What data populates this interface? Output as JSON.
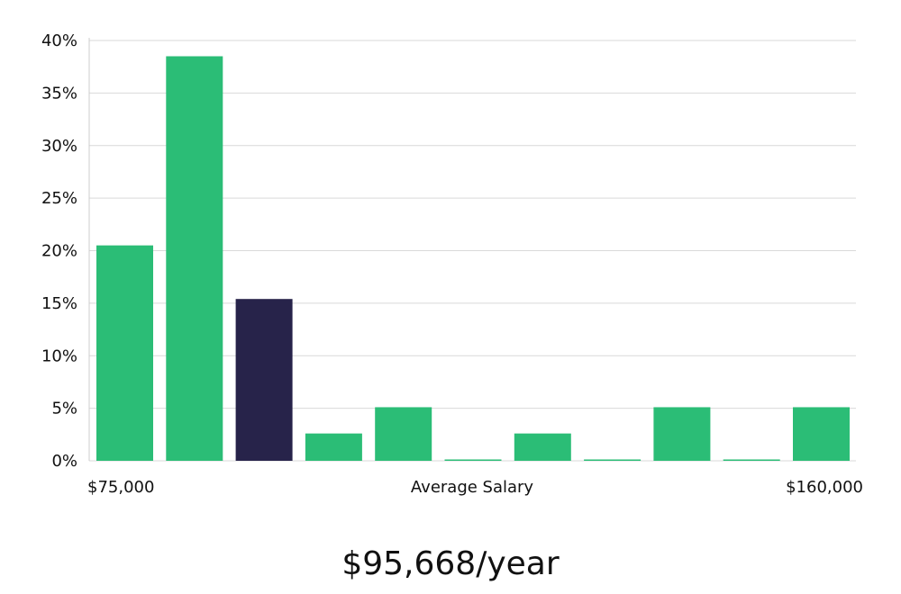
{
  "chart_data": {
    "type": "bar",
    "categories": [
      "",
      "",
      "",
      "",
      "",
      "",
      "",
      "",
      "",
      "",
      ""
    ],
    "values": [
      20.5,
      38.5,
      15.4,
      2.6,
      5.1,
      0,
      2.6,
      0,
      5.1,
      0,
      5.1
    ],
    "highlight_index": 2,
    "ylim": [
      0,
      40
    ],
    "y_ticks": [
      0,
      5,
      10,
      15,
      20,
      25,
      30,
      35,
      40
    ],
    "y_tick_format": "percent",
    "x_tick_labels": {
      "left": "$75,000",
      "right": "$160,000"
    },
    "xlabel": "Average Salary",
    "ylabel": "",
    "grid": true,
    "colors": {
      "bar": "#2bbd76",
      "highlight": "#27234a",
      "grid": "#d9d9d9"
    }
  },
  "caption": "$95,668/year"
}
